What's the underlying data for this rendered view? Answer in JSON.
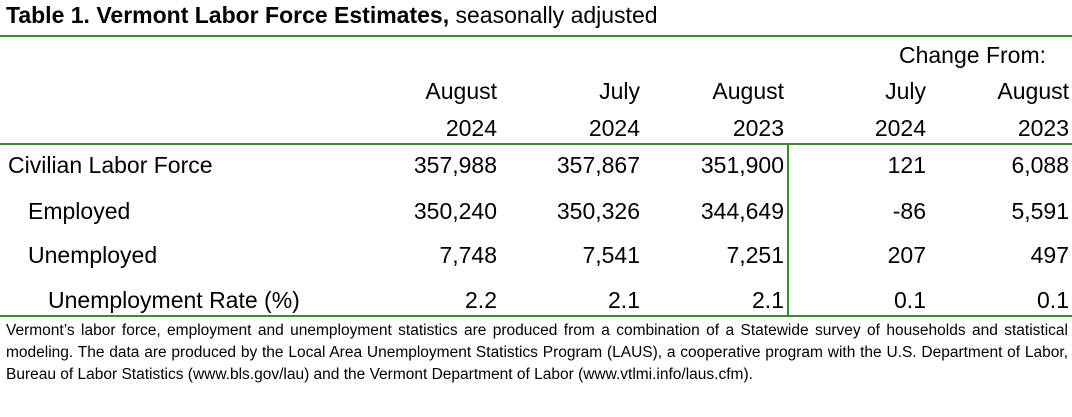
{
  "title": {
    "bold": "Table 1. Vermont Labor Force Estimates,",
    "rest": " seasonally adjusted"
  },
  "header": {
    "change_from": "Change From:",
    "columns": [
      {
        "month": "August",
        "year": "2024"
      },
      {
        "month": "July",
        "year": "2024"
      },
      {
        "month": "August",
        "year": "2023"
      },
      {
        "month": "July",
        "year": "2024"
      },
      {
        "month": "August",
        "year": "2023"
      }
    ]
  },
  "rows": [
    {
      "label": "Civilian Labor Force",
      "values": [
        "357,988",
        "357,867",
        "351,900",
        "121",
        "6,088"
      ]
    },
    {
      "label": "Employed",
      "values": [
        "350,240",
        "350,326",
        "344,649",
        "-86",
        "5,591"
      ]
    },
    {
      "label": "Unemployed",
      "values": [
        "7,748",
        "7,541",
        "7,251",
        "207",
        "497"
      ]
    },
    {
      "label": "Unemployment Rate (%)",
      "values": [
        "2.2",
        "2.1",
        "2.1",
        "0.1",
        "0.1"
      ]
    }
  ],
  "footnote": "Vermont’s labor force, employment and unemployment statistics are produced from a combination of a Statewide survey of households and statistical modeling.  The data are produced by the Local Area Unemployment Statistics Program (LAUS), a cooperative program with the U.S. Department of Labor, Bureau of Labor Statistics (www.bls.gov/lau) and the Vermont Department of Labor (www.vtlmi.info/laus.cfm).",
  "colors": {
    "rule": "#3b8b2e"
  }
}
